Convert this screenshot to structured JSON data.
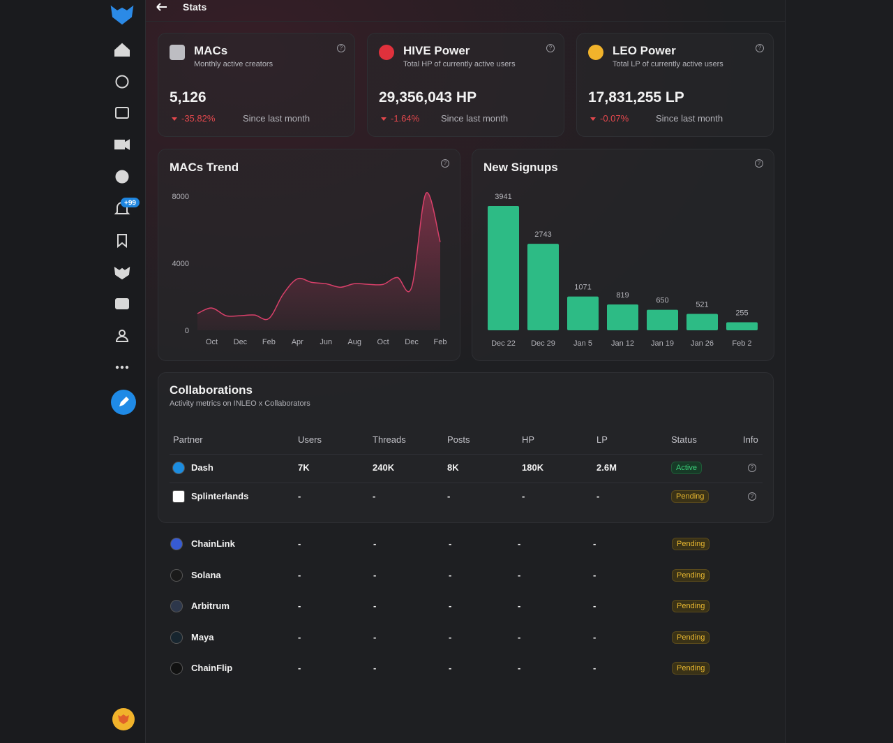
{
  "header": {
    "title": "Stats"
  },
  "sidebar": {
    "notification_badge": "+99"
  },
  "stats": [
    {
      "title": "MACs",
      "subtitle": "Monthly active creators",
      "value": "5,126",
      "change": "-35.82%",
      "change_note": "Since last month"
    },
    {
      "title": "HIVE Power",
      "subtitle": "Total HP of currently active users",
      "value": "29,356,043 HP",
      "change": "-1.64%",
      "change_note": "Since last month"
    },
    {
      "title": "LEO Power",
      "subtitle": "Total LP of currently active users",
      "value": "17,831,255 LP",
      "change": "-0.07%",
      "change_note": "Since last month"
    }
  ],
  "chart_data": [
    {
      "type": "line",
      "title": "MACs Trend",
      "categories": [
        null,
        "Oct",
        null,
        "Dec",
        null,
        "Feb",
        null,
        "Apr",
        null,
        "Jun",
        null,
        "Aug",
        null,
        "Oct",
        null,
        "Dec",
        null,
        "Feb"
      ],
      "values": [
        1000,
        1330,
        870,
        870,
        910,
        700,
        2150,
        3070,
        2860,
        2780,
        2570,
        2780,
        2740,
        2740,
        3150,
        2570,
        8170,
        5270
      ],
      "color": "#d9406a",
      "ylim": [
        0,
        8400
      ],
      "yticks": [
        0,
        4000,
        8000
      ]
    },
    {
      "type": "bar",
      "title": "New Signups",
      "categories": [
        "Dec 22",
        "Dec 29",
        "Jan 5",
        "Jan 12",
        "Jan 19",
        "Jan 26",
        "Feb 2"
      ],
      "values": [
        3941,
        2743,
        1071,
        819,
        650,
        521,
        255
      ],
      "color": "#2dbb85"
    }
  ],
  "collaborations": {
    "title": "Collaborations",
    "subtitle": "Activity metrics on INLEO x Collaborators",
    "columns": [
      "Partner",
      "Users",
      "Threads",
      "Posts",
      "HP",
      "LP",
      "Status",
      "Info"
    ],
    "rows": [
      [
        "Dash",
        "7K",
        "240K",
        "8K",
        "180K",
        "2.6M",
        "Active"
      ],
      [
        "Splinterlands",
        "-",
        "-",
        "-",
        "-",
        "-",
        "Pending"
      ]
    ],
    "more_rows": [
      [
        "ChainLink",
        "-",
        "-",
        "-",
        "-",
        "-",
        "Pending"
      ],
      [
        "Solana",
        "-",
        "-",
        "-",
        "-",
        "-",
        "Pending"
      ],
      [
        "Arbitrum",
        "-",
        "-",
        "-",
        "-",
        "-",
        "Pending"
      ],
      [
        "Maya",
        "-",
        "-",
        "-",
        "-",
        "-",
        "Pending"
      ],
      [
        "ChainFlip",
        "-",
        "-",
        "-",
        "-",
        "-",
        "Pending"
      ]
    ]
  }
}
